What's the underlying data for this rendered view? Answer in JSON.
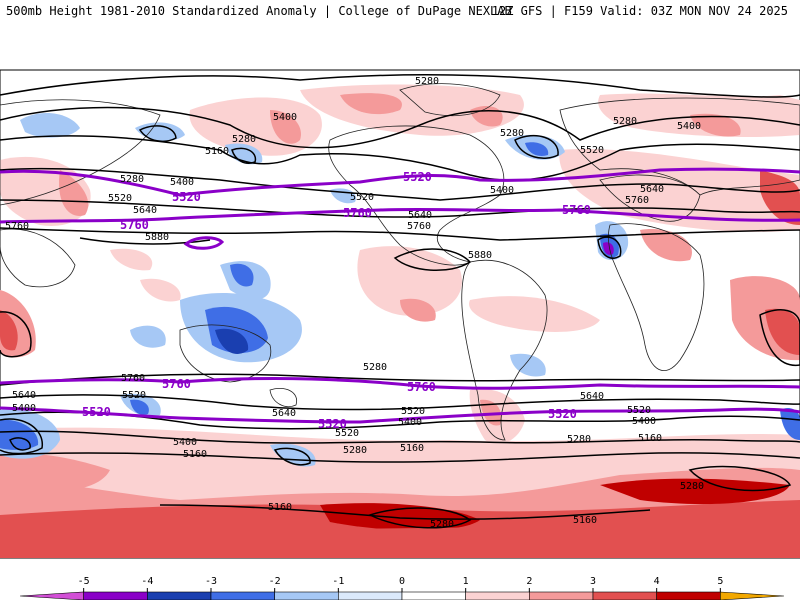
{
  "header": {
    "left": "500mb Height 1981-2010 Standardized Anomaly | College of DuPage NEXLAB",
    "right": "12Z GFS | F159 Valid: 03Z MON NOV 24 2025"
  },
  "contour_labels": [
    "5280",
    "5400",
    "5280",
    "5160",
    "5280",
    "5280",
    "5400",
    "5520",
    "5640",
    "5760",
    "5880",
    "5520",
    "5400",
    "5640",
    "5760",
    "5880",
    "5280",
    "5400",
    "5520",
    "5640",
    "5760",
    "5640",
    "5400",
    "5520",
    "5760",
    "5640",
    "5520",
    "5400",
    "5280",
    "5160",
    "5160",
    "5280",
    "5640",
    "5520",
    "5400",
    "5280",
    "5160",
    "5280",
    "5160",
    "5520",
    "5400",
    "5280",
    "5160"
  ],
  "purple_labels": [
    "5520",
    "5760",
    "5520",
    "5760",
    "5760",
    "5760",
    "5760",
    "5520",
    "5520",
    "5520"
  ],
  "colorbar": {
    "ticks": [
      "-5",
      "-4",
      "-3",
      "-2",
      "-1",
      "0",
      "1",
      "2",
      "3",
      "4",
      "5"
    ],
    "colors": [
      "#d24fd6",
      "#8a00c8",
      "#1a3fb0",
      "#3f6ee6",
      "#a6c8f5",
      "#dbe9fb",
      "#ffffff",
      "#fbd2d2",
      "#f49a9a",
      "#e25050",
      "#c00000",
      "#f2a800"
    ]
  }
}
